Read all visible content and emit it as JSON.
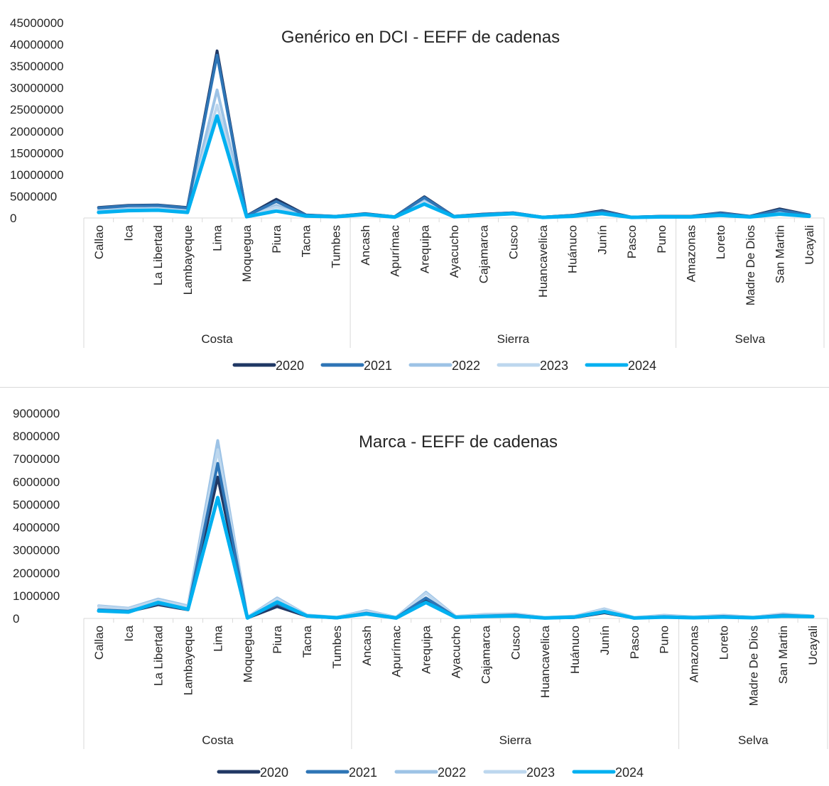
{
  "colors": {
    "2020": "#203864",
    "2021": "#2e75b6",
    "2022": "#9dc3e6",
    "2023": "#bdd7ee",
    "2024": "#00b0f0",
    "axis": "#d9d9d9",
    "text": "#262626"
  },
  "chart_data": [
    {
      "type": "line",
      "title": "Genérico en DCI - EEFF de cadenas",
      "ylim": [
        0,
        45000000
      ],
      "yticks": [
        "45000000",
        "40000000",
        "35000000",
        "30000000",
        "25000000",
        "20000000",
        "15000000",
        "10000000",
        "5000000",
        "0"
      ],
      "categories": [
        "Callao",
        "Ica",
        "La Libertad",
        "Lambayeque",
        "Lima",
        "Moquegua",
        "Piura",
        "Tacna",
        "Tumbes",
        "Ancash",
        "Apurímac",
        "Arequipa",
        "Ayacucho",
        "Cajamarca",
        "Cusco",
        "Huancavelica",
        "Huánuco",
        "Junín",
        "Pasco",
        "Puno",
        "Amazonas",
        "Loreto",
        "Madre De Dios",
        "San Martin",
        "Ucayali"
      ],
      "groups": [
        {
          "name": "Costa",
          "count": 9
        },
        {
          "name": "Sierra",
          "count": 11
        },
        {
          "name": "Selva",
          "count": 5
        }
      ],
      "legend": "bottom",
      "series": [
        {
          "name": "2020",
          "values": [
            2400000,
            2900000,
            3000000,
            2400000,
            38500000,
            500000,
            4300000,
            700000,
            400000,
            1000000,
            300000,
            4900000,
            400000,
            900000,
            1200000,
            200000,
            600000,
            1700000,
            200000,
            400000,
            400000,
            1200000,
            400000,
            2100000,
            700000
          ]
        },
        {
          "name": "2021",
          "values": [
            2300000,
            2800000,
            2900000,
            2300000,
            37500000,
            500000,
            3800000,
            650000,
            400000,
            950000,
            300000,
            4700000,
            400000,
            850000,
            1200000,
            200000,
            600000,
            1500000,
            200000,
            400000,
            350000,
            1100000,
            350000,
            1800000,
            650000
          ]
        },
        {
          "name": "2022",
          "values": [
            1800000,
            2100000,
            2300000,
            1700000,
            29500000,
            400000,
            2900000,
            550000,
            350000,
            850000,
            250000,
            4000000,
            350000,
            750000,
            1100000,
            150000,
            500000,
            1300000,
            150000,
            350000,
            300000,
            900000,
            300000,
            1400000,
            550000
          ]
        },
        {
          "name": "2023",
          "values": [
            1600000,
            1900000,
            2100000,
            1500000,
            26000000,
            350000,
            2500000,
            500000,
            300000,
            800000,
            250000,
            3700000,
            300000,
            700000,
            1000000,
            150000,
            450000,
            1200000,
            150000,
            300000,
            300000,
            800000,
            300000,
            1300000,
            500000
          ]
        },
        {
          "name": "2024",
          "values": [
            1300000,
            1700000,
            1800000,
            1300000,
            23500000,
            300000,
            1600000,
            450000,
            300000,
            800000,
            200000,
            3200000,
            300000,
            650000,
            1000000,
            150000,
            400000,
            1000000,
            150000,
            250000,
            250000,
            600000,
            250000,
            900000,
            400000
          ]
        }
      ]
    },
    {
      "type": "line",
      "title": "Marca - EEFF de cadenas",
      "ylim": [
        0,
        9000000
      ],
      "yticks": [
        "9000000",
        "8000000",
        "7000000",
        "6000000",
        "5000000",
        "4000000",
        "3000000",
        "2000000",
        "1000000",
        "0"
      ],
      "categories": [
        "Callao",
        "Ica",
        "La Libertad",
        "Lambayeque",
        "Lima",
        "Moquegua",
        "Piura",
        "Tacna",
        "Tumbes",
        "Ancash",
        "Apurímac",
        "Arequipa",
        "Ayacucho",
        "Cajamarca",
        "Cusco",
        "Huancavelica",
        "Huánuco",
        "Junín",
        "Pasco",
        "Puno",
        "Amazonas",
        "Loreto",
        "Madre De Dios",
        "San Martin",
        "Ucayali"
      ],
      "groups": [
        {
          "name": "Costa",
          "count": 9
        },
        {
          "name": "Sierra",
          "count": 11
        },
        {
          "name": "Selva",
          "count": 5
        }
      ],
      "legend": "bottom",
      "series": [
        {
          "name": "2020",
          "values": [
            350000,
            300000,
            600000,
            380000,
            6200000,
            20000,
            520000,
            100000,
            20000,
            200000,
            20000,
            800000,
            50000,
            100000,
            130000,
            20000,
            40000,
            250000,
            20000,
            70000,
            30000,
            70000,
            30000,
            120000,
            80000
          ]
        },
        {
          "name": "2021",
          "values": [
            380000,
            320000,
            650000,
            400000,
            6800000,
            30000,
            650000,
            110000,
            30000,
            230000,
            30000,
            900000,
            60000,
            110000,
            150000,
            20000,
            60000,
            300000,
            20000,
            80000,
            40000,
            90000,
            40000,
            140000,
            90000
          ]
        },
        {
          "name": "2022",
          "values": [
            550000,
            450000,
            850000,
            550000,
            7800000,
            50000,
            900000,
            150000,
            50000,
            350000,
            50000,
            1150000,
            90000,
            180000,
            200000,
            40000,
            100000,
            420000,
            40000,
            140000,
            70000,
            140000,
            60000,
            200000,
            110000
          ]
        },
        {
          "name": "2023",
          "values": [
            520000,
            420000,
            800000,
            520000,
            7400000,
            40000,
            850000,
            140000,
            40000,
            320000,
            40000,
            1100000,
            80000,
            160000,
            180000,
            40000,
            90000,
            400000,
            40000,
            120000,
            60000,
            130000,
            60000,
            180000,
            100000
          ]
        },
        {
          "name": "2024",
          "values": [
            330000,
            280000,
            700000,
            400000,
            5300000,
            20000,
            720000,
            110000,
            30000,
            200000,
            20000,
            700000,
            50000,
            90000,
            110000,
            20000,
            60000,
            300000,
            20000,
            60000,
            30000,
            60000,
            30000,
            100000,
            80000
          ]
        }
      ]
    }
  ]
}
